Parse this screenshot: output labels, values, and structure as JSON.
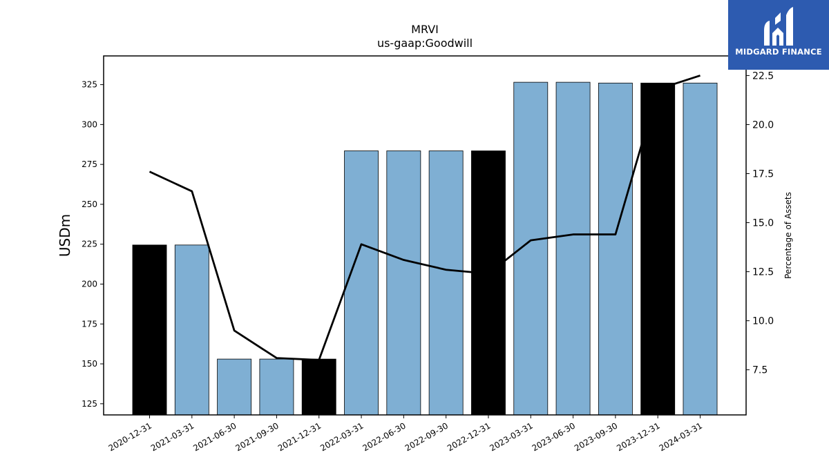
{
  "chart_data": {
    "type": "bar",
    "title": "MRVI",
    "subtitle": "us-gaap:Goodwill",
    "ylabel": "USDm",
    "y2label": "Percentage of Assets",
    "categories": [
      "2020-12-31",
      "2021-03-31",
      "2021-06-30",
      "2021-09-30",
      "2021-12-31",
      "2022-03-31",
      "2022-06-30",
      "2022-09-30",
      "2022-12-31",
      "2023-03-31",
      "2023-06-30",
      "2023-09-30",
      "2023-12-31",
      "2024-03-31"
    ],
    "series": [
      {
        "type": "bar",
        "values": [
          224.5,
          224.5,
          153,
          153,
          153,
          283.5,
          283.5,
          283.5,
          283.5,
          326.5,
          326.5,
          326,
          326,
          326
        ],
        "highlight": [
          true,
          false,
          false,
          false,
          true,
          false,
          false,
          false,
          true,
          false,
          false,
          false,
          true,
          false
        ]
      },
      {
        "type": "line",
        "axis": "right",
        "values": [
          17.6,
          16.6,
          9.5,
          8.1,
          8.0,
          13.9,
          13.1,
          12.6,
          12.4,
          14.1,
          14.4,
          14.4,
          21.8,
          22.5
        ]
      }
    ],
    "ylim": [
      118,
      343
    ],
    "y2lim": [
      5.2,
      23.5
    ],
    "yticks": [
      125,
      150,
      175,
      200,
      225,
      250,
      275,
      300,
      325
    ],
    "y2ticks": [
      7.5,
      10.0,
      12.5,
      15.0,
      17.5,
      20.0,
      22.5
    ],
    "colors": {
      "bar": "#7fafd3",
      "highlight": "#000000",
      "line": "#000000",
      "edge": "#000000"
    },
    "grid": false
  },
  "logo": {
    "text": "MIDGARD FINANCE",
    "background": "#2d5bb0"
  }
}
